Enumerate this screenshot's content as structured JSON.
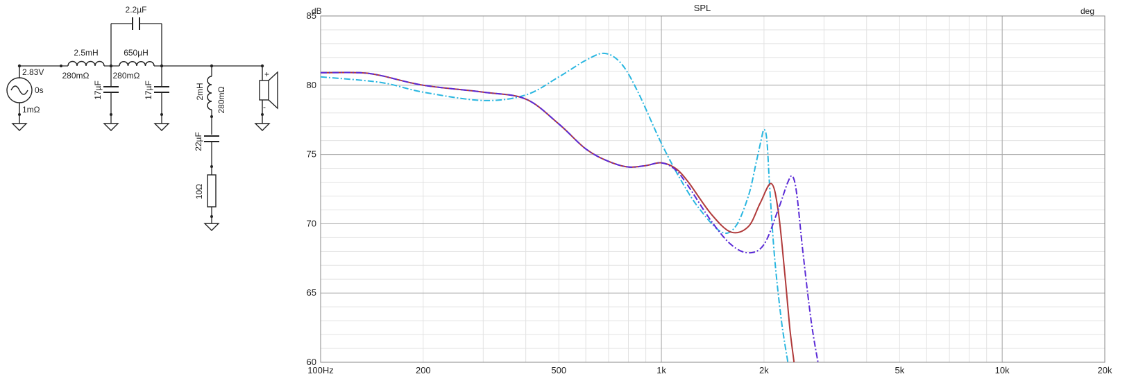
{
  "schematic": {
    "source": {
      "voltage": "2.83V",
      "delay": "0s",
      "resistance": "1mΩ"
    },
    "series_inductor_1": {
      "value": "2.5mH",
      "resistance": "280mΩ"
    },
    "series_inductor_2": {
      "value": "650µH",
      "resistance": "280mΩ"
    },
    "bridge_capacitor": {
      "value": "2.2µF"
    },
    "shunt_capacitor_1": {
      "value": "17µF"
    },
    "shunt_capacitor_2": {
      "value": "17µF"
    },
    "notch_inductor": {
      "value": "2mH",
      "resistance": "280mΩ"
    },
    "notch_capacitor": {
      "value": "22µF"
    },
    "notch_resistor": {
      "value": "10Ω"
    },
    "speaker": {
      "plus": "+",
      "minus": "-"
    }
  },
  "chart_data": {
    "type": "line",
    "title": "SPL",
    "ylabel": "dB",
    "y2label": "deg",
    "xscale": "log",
    "xlim": [
      100,
      20000
    ],
    "ylim": [
      60,
      85
    ],
    "x_ticks": [
      {
        "value": 100,
        "label": "100Hz"
      },
      {
        "value": 200,
        "label": "200"
      },
      {
        "value": 500,
        "label": "500"
      },
      {
        "value": 1000,
        "label": "1k"
      },
      {
        "value": 2000,
        "label": "2k"
      },
      {
        "value": 5000,
        "label": "5k"
      },
      {
        "value": 10000,
        "label": "10k"
      },
      {
        "value": 20000,
        "label": "20k"
      }
    ],
    "y_ticks": [
      {
        "value": 60,
        "label": "60"
      },
      {
        "value": 65,
        "label": "65"
      },
      {
        "value": 70,
        "label": "70"
      },
      {
        "value": 75,
        "label": "75"
      },
      {
        "value": 80,
        "label": "80"
      },
      {
        "value": 85,
        "label": "85"
      }
    ],
    "grid": true,
    "series": [
      {
        "color": "#29b6e0",
        "style": "dashdot",
        "x": [
          100,
          150,
          200,
          300,
          400,
          500,
          600,
          680,
          760,
          850,
          1000,
          1150,
          1300,
          1500,
          1650,
          1800,
          1900,
          1960,
          2000,
          2040,
          2080,
          2150,
          2250,
          2350
        ],
        "y": [
          80.6,
          80.2,
          79.5,
          78.9,
          79.3,
          80.6,
          81.8,
          82.3,
          81.6,
          79.6,
          75.8,
          73.0,
          71.0,
          69.4,
          69.8,
          72.0,
          74.5,
          76.0,
          76.8,
          76.0,
          72.5,
          67.5,
          63.0,
          60.0
        ]
      },
      {
        "color": "#b03a3a",
        "style": "solid",
        "x": [
          100,
          130,
          150,
          200,
          300,
          400,
          500,
          600,
          700,
          800,
          900,
          1000,
          1100,
          1200,
          1400,
          1600,
          1800,
          1950,
          2100,
          2200,
          2300,
          2380,
          2450
        ],
        "y": [
          80.9,
          80.9,
          80.7,
          80.0,
          79.5,
          79.0,
          77.2,
          75.4,
          74.5,
          74.1,
          74.2,
          74.4,
          74.0,
          73.0,
          70.7,
          69.4,
          69.8,
          71.5,
          72.9,
          71.0,
          66.5,
          62.5,
          60.0
        ]
      },
      {
        "color": "#5b2bd6",
        "style": "dashdot",
        "x": [
          100,
          130,
          150,
          200,
          300,
          400,
          500,
          600,
          700,
          800,
          900,
          1000,
          1100,
          1200,
          1400,
          1600,
          1800,
          2000,
          2200,
          2350,
          2430,
          2500,
          2600,
          2750,
          2880
        ],
        "y": [
          80.9,
          80.9,
          80.7,
          80.0,
          79.5,
          79.0,
          77.2,
          75.4,
          74.5,
          74.1,
          74.2,
          74.4,
          73.9,
          72.7,
          70.2,
          68.5,
          67.9,
          68.5,
          71.0,
          73.0,
          73.4,
          72.0,
          68.0,
          63.0,
          60.0
        ]
      }
    ]
  }
}
